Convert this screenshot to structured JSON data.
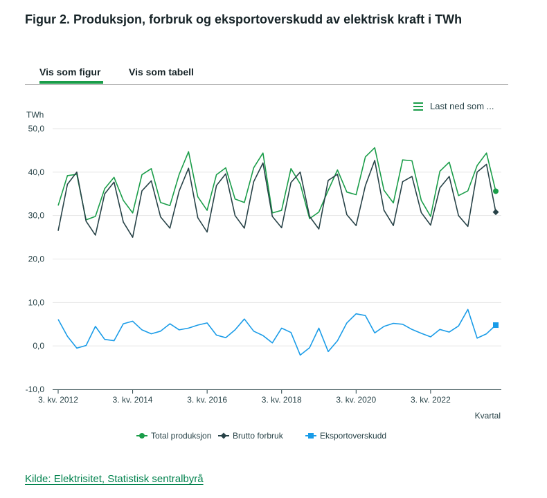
{
  "title": "Figur 2. Produksjon, forbruk og eksportoverskudd av elektrisk kraft i TWh",
  "tabs": [
    {
      "label": "Vis som figur",
      "active": true
    },
    {
      "label": "Vis som tabell",
      "active": false
    }
  ],
  "download_label": "Last ned som ...",
  "source_label": "Kilde: Elektrisitet, Statistisk sentralbyrå",
  "colors": {
    "accent": "#1a9d49",
    "production": "#1a9d49",
    "consumption": "#274247",
    "export": "#1a9ce8",
    "source_link": "#00824d"
  },
  "chart_data": {
    "type": "line",
    "title": "",
    "xlabel": "Kvartal",
    "ylabel": "TWh",
    "ylim": [
      -10,
      50
    ],
    "yticks": [
      -10,
      0,
      10,
      20,
      30,
      40,
      50
    ],
    "ytick_labels": [
      "-10,0",
      "0,0",
      "10,0",
      "20,0",
      "30,0",
      "40,0",
      "50,0"
    ],
    "xtick_labels": [
      {
        "index": 0,
        "label": "3. kv. 2012"
      },
      {
        "index": 8,
        "label": "3. kv. 2014"
      },
      {
        "index": 16,
        "label": "3. kv. 2016"
      },
      {
        "index": 24,
        "label": "3. kv. 2018"
      },
      {
        "index": 32,
        "label": "3. kv. 2020"
      },
      {
        "index": 40,
        "label": "3. kv. 2022"
      }
    ],
    "n_points": 48,
    "series": [
      {
        "name": "Total produksjon",
        "marker": "circle",
        "values": [
          32.3,
          39.2,
          39.5,
          29.0,
          29.8,
          36.2,
          38.8,
          33.5,
          30.6,
          39.4,
          40.8,
          33.0,
          32.3,
          39.5,
          44.7,
          34.3,
          31.2,
          39.4,
          41.0,
          33.8,
          33.0,
          41.0,
          44.4,
          30.6,
          31.2,
          40.8,
          37.3,
          29.3,
          30.8,
          35.8,
          40.5,
          35.4,
          34.8,
          43.5,
          45.6,
          35.8,
          32.9,
          42.8,
          42.6,
          33.5,
          29.8,
          40.2,
          42.3,
          34.6,
          35.7,
          41.5,
          44.4,
          35.6
        ]
      },
      {
        "name": "Brutto forbruk",
        "marker": "diamond",
        "values": [
          26.5,
          37.2,
          40.0,
          28.7,
          25.5,
          35.0,
          37.7,
          28.5,
          25.0,
          35.7,
          38.0,
          29.7,
          27.1,
          35.7,
          40.9,
          29.5,
          26.2,
          36.9,
          39.6,
          30.0,
          27.1,
          37.8,
          42.1,
          29.8,
          27.2,
          37.6,
          40.0,
          29.8,
          26.9,
          38.1,
          39.5,
          30.2,
          27.7,
          36.9,
          42.7,
          31.2,
          27.7,
          37.8,
          39.0,
          30.7,
          27.8,
          36.4,
          39.0,
          30.0,
          27.5,
          40.0,
          41.8,
          30.8
        ]
      },
      {
        "name": "Eksportoverskudd",
        "marker": "square",
        "values": [
          6.1,
          2.2,
          -0.5,
          0.1,
          4.5,
          1.5,
          1.2,
          5.1,
          5.7,
          3.7,
          2.8,
          3.4,
          5.1,
          3.7,
          4.1,
          4.8,
          5.3,
          2.5,
          1.9,
          3.7,
          6.2,
          3.4,
          2.4,
          0.7,
          4.1,
          3.1,
          -2.1,
          -0.4,
          4.1,
          -1.3,
          1.2,
          5.3,
          7.4,
          7.0,
          3.0,
          4.5,
          5.2,
          5.0,
          3.8,
          2.9,
          2.1,
          3.8,
          3.2,
          4.6,
          8.4,
          1.8,
          2.8,
          4.8
        ]
      }
    ],
    "legend_position": "bottom-center",
    "grid": true
  }
}
